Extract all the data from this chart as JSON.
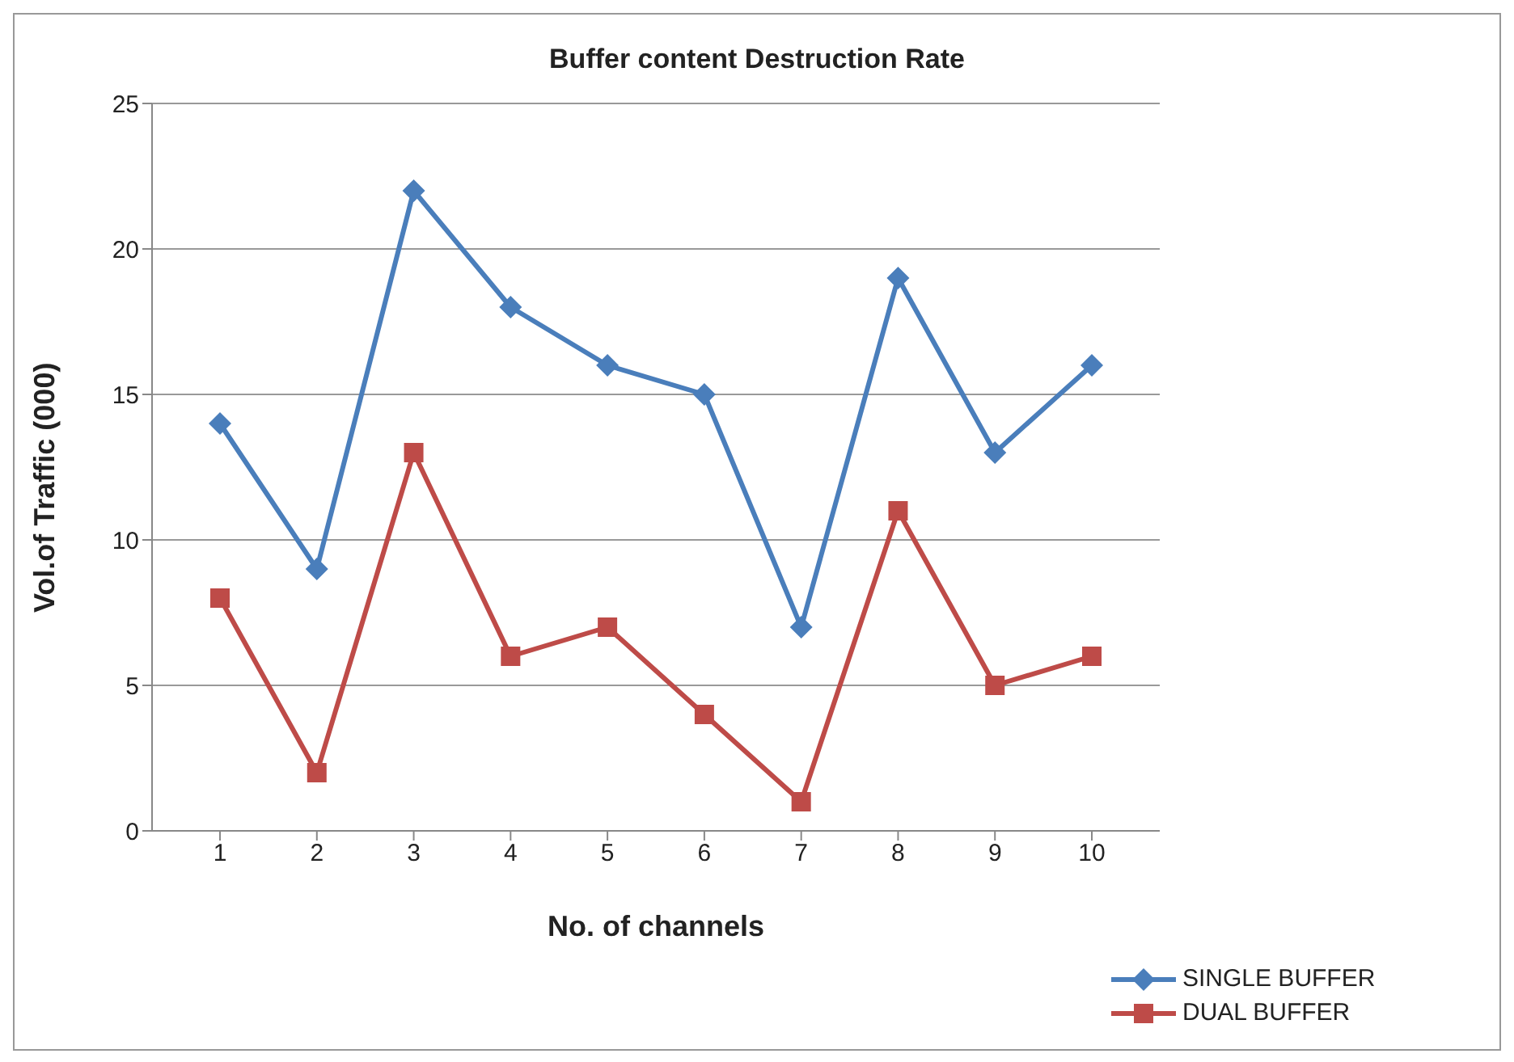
{
  "chart_data": {
    "type": "line",
    "title": "Buffer content Destruction Rate",
    "xlabel": "No. of channels",
    "ylabel": "Vol.of Traffic (000)",
    "categories": [
      "1",
      "2",
      "3",
      "4",
      "5",
      "6",
      "7",
      "8",
      "9",
      "10"
    ],
    "series": [
      {
        "name": "SINGLE BUFFER",
        "color": "#4a7ebb",
        "marker": "diamond",
        "values": [
          14,
          9,
          22,
          18,
          16,
          15,
          7,
          19,
          13,
          16
        ]
      },
      {
        "name": "DUAL BUFFER",
        "color": "#be4b48",
        "marker": "square",
        "values": [
          8,
          2,
          13,
          6,
          7,
          4,
          1,
          11,
          5,
          6
        ]
      }
    ],
    "ylim": [
      0,
      25
    ],
    "yticks": [
      0,
      5,
      10,
      15,
      20,
      25
    ],
    "grid": "y",
    "legend": "bottom right",
    "line_style": "solid"
  }
}
